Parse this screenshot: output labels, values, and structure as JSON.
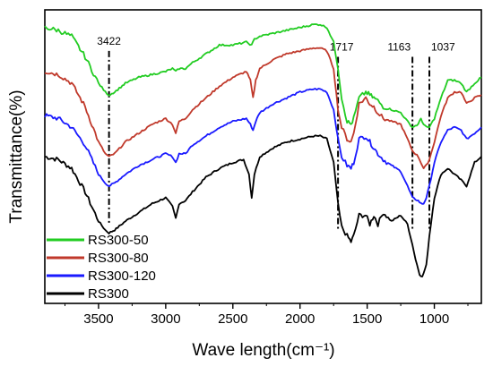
{
  "chart_data": {
    "type": "line",
    "xlabel": "Wave length(cm⁻¹)",
    "ylabel": "Transmittance(%)",
    "xlim": [
      3900,
      650
    ],
    "x_reversed": true,
    "xticks": [
      3500,
      3000,
      2500,
      2000,
      1500,
      1000
    ],
    "xtick_labels": [
      "3500",
      "3000",
      "2500",
      "2000",
      "1500",
      "1000"
    ],
    "yticks_shown": false,
    "legend_position": "bottom-left",
    "series": [
      {
        "name": "RS300-50",
        "color": "#22cc22",
        "points": [
          [
            3900,
            0.94
          ],
          [
            3800,
            0.93
          ],
          [
            3700,
            0.91
          ],
          [
            3600,
            0.84
          ],
          [
            3500,
            0.75
          ],
          [
            3450,
            0.72
          ],
          [
            3422,
            0.71
          ],
          [
            3380,
            0.72
          ],
          [
            3300,
            0.75
          ],
          [
            3200,
            0.77
          ],
          [
            3100,
            0.78
          ],
          [
            3000,
            0.79
          ],
          [
            2950,
            0.8
          ],
          [
            2925,
            0.79
          ],
          [
            2900,
            0.8
          ],
          [
            2853,
            0.8
          ],
          [
            2800,
            0.82
          ],
          [
            2700,
            0.85
          ],
          [
            2600,
            0.88
          ],
          [
            2500,
            0.88
          ],
          [
            2400,
            0.89
          ],
          [
            2360,
            0.88
          ],
          [
            2340,
            0.9
          ],
          [
            2300,
            0.91
          ],
          [
            2200,
            0.92
          ],
          [
            2100,
            0.93
          ],
          [
            2000,
            0.94
          ],
          [
            1900,
            0.95
          ],
          [
            1850,
            0.95
          ],
          [
            1800,
            0.94
          ],
          [
            1750,
            0.89
          ],
          [
            1717,
            0.8
          ],
          [
            1690,
            0.7
          ],
          [
            1650,
            0.62
          ],
          [
            1620,
            0.61
          ],
          [
            1600,
            0.63
          ],
          [
            1560,
            0.7
          ],
          [
            1510,
            0.72
          ],
          [
            1480,
            0.71
          ],
          [
            1450,
            0.7
          ],
          [
            1420,
            0.69
          ],
          [
            1380,
            0.67
          ],
          [
            1320,
            0.66
          ],
          [
            1250,
            0.65
          ],
          [
            1200,
            0.62
          ],
          [
            1163,
            0.6
          ],
          [
            1120,
            0.61
          ],
          [
            1100,
            0.63
          ],
          [
            1080,
            0.61
          ],
          [
            1060,
            0.6
          ],
          [
            1037,
            0.6
          ],
          [
            1000,
            0.63
          ],
          [
            950,
            0.7
          ],
          [
            900,
            0.76
          ],
          [
            850,
            0.76
          ],
          [
            800,
            0.75
          ],
          [
            760,
            0.72
          ],
          [
            700,
            0.75
          ],
          [
            650,
            0.77
          ]
        ]
      },
      {
        "name": "RS300-80",
        "color": "#c0392b",
        "points": [
          [
            3900,
            0.79
          ],
          [
            3800,
            0.78
          ],
          [
            3700,
            0.75
          ],
          [
            3600,
            0.67
          ],
          [
            3500,
            0.55
          ],
          [
            3450,
            0.51
          ],
          [
            3422,
            0.5
          ],
          [
            3380,
            0.51
          ],
          [
            3300,
            0.55
          ],
          [
            3200,
            0.58
          ],
          [
            3100,
            0.61
          ],
          [
            3000,
            0.63
          ],
          [
            2950,
            0.61
          ],
          [
            2925,
            0.58
          ],
          [
            2900,
            0.62
          ],
          [
            2853,
            0.63
          ],
          [
            2800,
            0.66
          ],
          [
            2700,
            0.7
          ],
          [
            2600,
            0.74
          ],
          [
            2500,
            0.77
          ],
          [
            2400,
            0.79
          ],
          [
            2370,
            0.76
          ],
          [
            2350,
            0.7
          ],
          [
            2330,
            0.76
          ],
          [
            2300,
            0.8
          ],
          [
            2200,
            0.83
          ],
          [
            2100,
            0.85
          ],
          [
            2000,
            0.86
          ],
          [
            1900,
            0.87
          ],
          [
            1850,
            0.87
          ],
          [
            1800,
            0.86
          ],
          [
            1750,
            0.8
          ],
          [
            1717,
            0.66
          ],
          [
            1690,
            0.6
          ],
          [
            1650,
            0.56
          ],
          [
            1620,
            0.55
          ],
          [
            1600,
            0.58
          ],
          [
            1560,
            0.68
          ],
          [
            1510,
            0.7
          ],
          [
            1480,
            0.68
          ],
          [
            1450,
            0.67
          ],
          [
            1420,
            0.65
          ],
          [
            1380,
            0.63
          ],
          [
            1320,
            0.62
          ],
          [
            1250,
            0.61
          ],
          [
            1200,
            0.56
          ],
          [
            1163,
            0.52
          ],
          [
            1120,
            0.5
          ],
          [
            1100,
            0.48
          ],
          [
            1080,
            0.46
          ],
          [
            1060,
            0.47
          ],
          [
            1037,
            0.49
          ],
          [
            1000,
            0.55
          ],
          [
            950,
            0.64
          ],
          [
            900,
            0.7
          ],
          [
            850,
            0.72
          ],
          [
            800,
            0.72
          ],
          [
            760,
            0.68
          ],
          [
            700,
            0.7
          ],
          [
            650,
            0.71
          ]
        ]
      },
      {
        "name": "RS300-120",
        "color": "#1a1aff",
        "points": [
          [
            3900,
            0.64
          ],
          [
            3800,
            0.63
          ],
          [
            3700,
            0.6
          ],
          [
            3600,
            0.54
          ],
          [
            3500,
            0.44
          ],
          [
            3450,
            0.41
          ],
          [
            3422,
            0.4
          ],
          [
            3380,
            0.41
          ],
          [
            3300,
            0.44
          ],
          [
            3200,
            0.47
          ],
          [
            3100,
            0.49
          ],
          [
            3000,
            0.51
          ],
          [
            2950,
            0.5
          ],
          [
            2925,
            0.48
          ],
          [
            2900,
            0.51
          ],
          [
            2853,
            0.51
          ],
          [
            2800,
            0.54
          ],
          [
            2700,
            0.57
          ],
          [
            2600,
            0.6
          ],
          [
            2500,
            0.62
          ],
          [
            2400,
            0.63
          ],
          [
            2370,
            0.61
          ],
          [
            2350,
            0.59
          ],
          [
            2330,
            0.62
          ],
          [
            2300,
            0.65
          ],
          [
            2200,
            0.68
          ],
          [
            2100,
            0.7
          ],
          [
            2000,
            0.72
          ],
          [
            1900,
            0.73
          ],
          [
            1850,
            0.73
          ],
          [
            1800,
            0.72
          ],
          [
            1750,
            0.66
          ],
          [
            1717,
            0.56
          ],
          [
            1690,
            0.5
          ],
          [
            1650,
            0.47
          ],
          [
            1620,
            0.46
          ],
          [
            1600,
            0.48
          ],
          [
            1560,
            0.56
          ],
          [
            1510,
            0.57
          ],
          [
            1480,
            0.55
          ],
          [
            1450,
            0.53
          ],
          [
            1420,
            0.51
          ],
          [
            1380,
            0.49
          ],
          [
            1320,
            0.47
          ],
          [
            1250,
            0.45
          ],
          [
            1200,
            0.4
          ],
          [
            1163,
            0.36
          ],
          [
            1120,
            0.35
          ],
          [
            1100,
            0.34
          ],
          [
            1080,
            0.34
          ],
          [
            1060,
            0.36
          ],
          [
            1037,
            0.4
          ],
          [
            1000,
            0.48
          ],
          [
            950,
            0.55
          ],
          [
            900,
            0.59
          ],
          [
            850,
            0.6
          ],
          [
            800,
            0.59
          ],
          [
            760,
            0.56
          ],
          [
            700,
            0.58
          ],
          [
            650,
            0.6
          ]
        ]
      },
      {
        "name": "RS300",
        "color": "#000000",
        "points": [
          [
            3900,
            0.5
          ],
          [
            3800,
            0.49
          ],
          [
            3700,
            0.46
          ],
          [
            3600,
            0.38
          ],
          [
            3500,
            0.28
          ],
          [
            3450,
            0.25
          ],
          [
            3422,
            0.24
          ],
          [
            3380,
            0.25
          ],
          [
            3300,
            0.28
          ],
          [
            3200,
            0.31
          ],
          [
            3100,
            0.34
          ],
          [
            3000,
            0.36
          ],
          [
            2950,
            0.33
          ],
          [
            2925,
            0.29
          ],
          [
            2900,
            0.34
          ],
          [
            2853,
            0.35
          ],
          [
            2800,
            0.38
          ],
          [
            2700,
            0.43
          ],
          [
            2600,
            0.46
          ],
          [
            2500,
            0.48
          ],
          [
            2420,
            0.49
          ],
          [
            2380,
            0.44
          ],
          [
            2360,
            0.36
          ],
          [
            2340,
            0.44
          ],
          [
            2300,
            0.5
          ],
          [
            2200,
            0.53
          ],
          [
            2100,
            0.55
          ],
          [
            2000,
            0.56
          ],
          [
            1900,
            0.57
          ],
          [
            1850,
            0.57
          ],
          [
            1800,
            0.56
          ],
          [
            1750,
            0.48
          ],
          [
            1717,
            0.34
          ],
          [
            1690,
            0.26
          ],
          [
            1650,
            0.23
          ],
          [
            1620,
            0.21
          ],
          [
            1600,
            0.23
          ],
          [
            1560,
            0.3
          ],
          [
            1510,
            0.3
          ],
          [
            1480,
            0.27
          ],
          [
            1450,
            0.3
          ],
          [
            1420,
            0.27
          ],
          [
            1380,
            0.31
          ],
          [
            1320,
            0.28
          ],
          [
            1250,
            0.3
          ],
          [
            1200,
            0.27
          ],
          [
            1163,
            0.2
          ],
          [
            1140,
            0.15
          ],
          [
            1110,
            0.1
          ],
          [
            1090,
            0.09
          ],
          [
            1060,
            0.13
          ],
          [
            1037,
            0.23
          ],
          [
            1000,
            0.36
          ],
          [
            950,
            0.44
          ],
          [
            900,
            0.46
          ],
          [
            850,
            0.44
          ],
          [
            800,
            0.42
          ],
          [
            760,
            0.4
          ],
          [
            700,
            0.48
          ],
          [
            650,
            0.5
          ]
        ]
      }
    ],
    "annotations": [
      {
        "label": "3422",
        "x": 3422
      },
      {
        "label": "1717",
        "x": 1717
      },
      {
        "label": "1163",
        "x": 1163
      },
      {
        "label": "1037",
        "x": 1037
      }
    ]
  }
}
